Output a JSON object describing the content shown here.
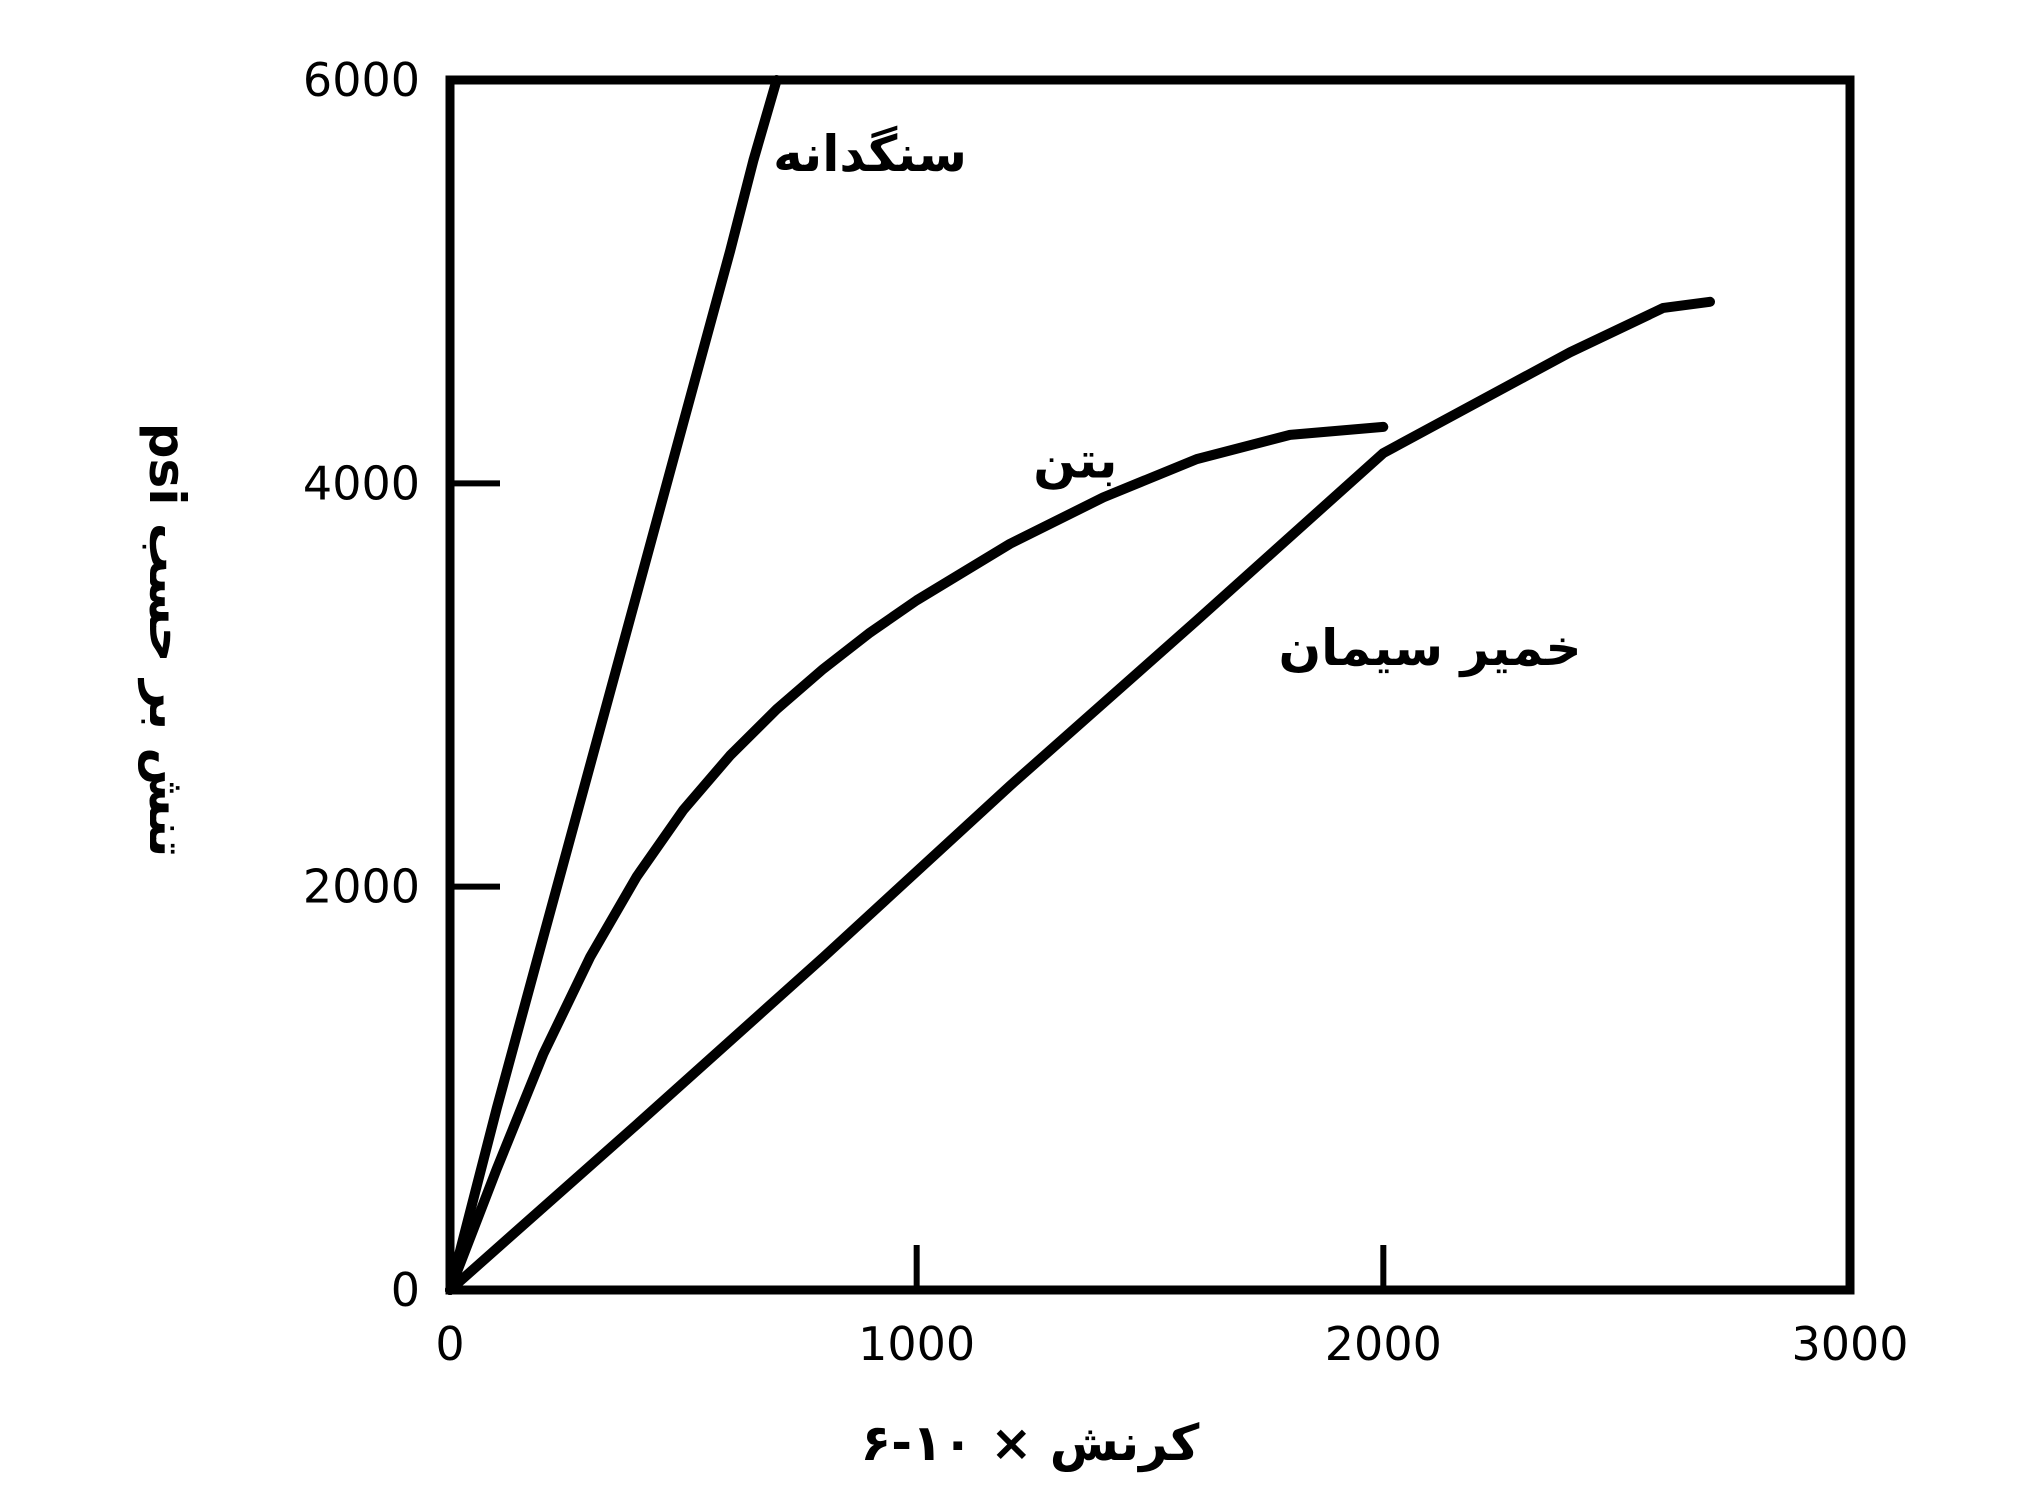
{
  "chart_data": {
    "type": "line",
    "xlabel": "کرنش × ۱۰-۶",
    "ylabel": "تنش بر حسب psi",
    "xlim": [
      0,
      3000
    ],
    "ylim": [
      0,
      6000
    ],
    "x_ticks": [
      "0",
      "1000",
      "2000",
      "3000"
    ],
    "y_ticks": [
      "0",
      "2000",
      "4000",
      "6000"
    ],
    "grid": false,
    "series": [
      {
        "name": "سنگدانه",
        "x": [
          0,
          100,
          200,
          300,
          400,
          500,
          600,
          650,
          700
        ],
        "y": [
          0,
          900,
          1750,
          2600,
          3450,
          4300,
          5150,
          5600,
          6000
        ]
      },
      {
        "name": "بتن",
        "x": [
          0,
          100,
          200,
          300,
          400,
          500,
          600,
          700,
          800,
          900,
          1000,
          1200,
          1400,
          1600,
          1800,
          2000
        ],
        "y": [
          0,
          600,
          1170,
          1650,
          2050,
          2380,
          2650,
          2880,
          3080,
          3260,
          3420,
          3700,
          3930,
          4120,
          4240,
          4280
        ]
      },
      {
        "name": "خمیر سیمان",
        "x": [
          0,
          400,
          800,
          1200,
          1600,
          2000,
          2400,
          2600,
          2700
        ],
        "y": [
          0,
          820,
          1650,
          2500,
          3320,
          4150,
          4650,
          4870,
          4900
        ]
      }
    ]
  }
}
